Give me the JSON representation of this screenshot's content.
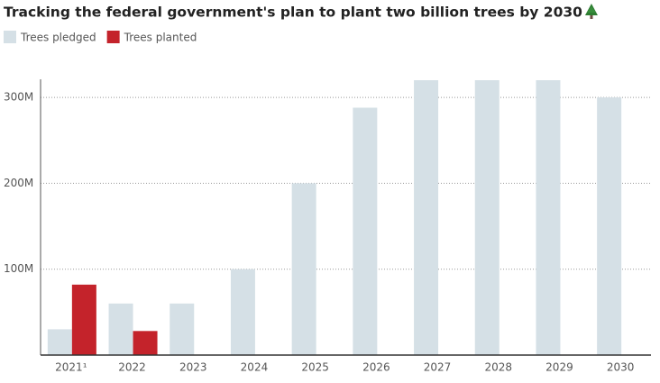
{
  "chart_data": {
    "type": "bar",
    "title": "Tracking the federal government's plan to plant two billion trees by 2030",
    "categories": [
      "2021¹",
      "2022",
      "2023",
      "2024",
      "2025",
      "2026",
      "2027",
      "2028",
      "2029",
      "2030"
    ],
    "series": [
      {
        "name": "Trees pledged",
        "color": "#d5e0e6",
        "values": [
          30,
          60,
          60,
          100,
          200,
          288,
          320,
          320,
          320,
          300
        ]
      },
      {
        "name": "Trees planted",
        "color": "#c4232b",
        "values": [
          82,
          28,
          null,
          null,
          null,
          null,
          null,
          null,
          null,
          null
        ]
      }
    ],
    "ylim": [
      0,
      320
    ],
    "yticks": [
      {
        "value": 100,
        "label": "100M"
      },
      {
        "value": 200,
        "label": "200M"
      },
      {
        "value": 300,
        "label": "300M"
      }
    ],
    "grid": true
  }
}
